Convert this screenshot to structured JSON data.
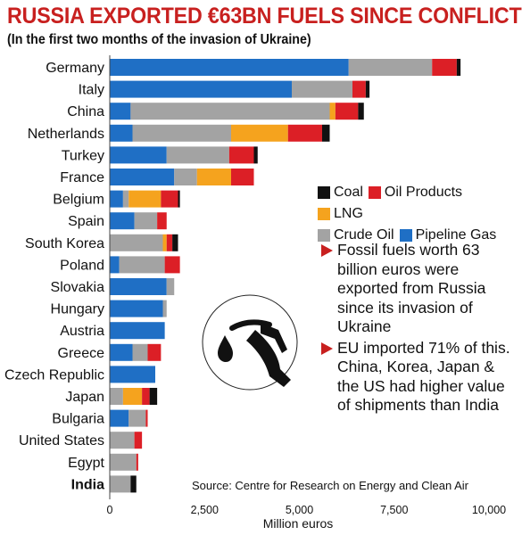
{
  "title": "RUSSIA EXPORTED €63BN FUELS SINCE CONFLICT",
  "subtitle": "(In the first two months of the invasion of Ukraine)",
  "colors": {
    "title_red": "#c8201f",
    "Pipeline Gas": "#1f6fc5",
    "Crude Oil": "#a3a3a3",
    "LNG": "#f5a31e",
    "Oil Products": "#dc1f26",
    "Coal": "#111111"
  },
  "legend": {
    "row1": [
      "Coal",
      "Oil Products",
      "LNG"
    ],
    "row2": [
      "Crude Oil",
      "Pipeline Gas"
    ]
  },
  "notes": [
    "Fossil fuels worth 63 billion euros were exported from Russia since its invasion of Ukraine",
    "EU imported 71% of this. China, Korea, Japan & the US had higher value of shipments than India"
  ],
  "source": "Source: Centre for Research on Energy and Clean Air",
  "icon": "fuel-pump-icon",
  "chart_data": {
    "type": "bar",
    "orientation": "horizontal",
    "stacked": true,
    "title": "RUSSIA EXPORTED €63BN FUELS SINCE CONFLICT",
    "subtitle": "(In the first two months of the invasion of Ukraine)",
    "xlabel": "Million euros",
    "ylabel": "",
    "xlim": [
      0,
      10000
    ],
    "xticks": [
      0,
      2500,
      5000,
      7500,
      10000
    ],
    "xtick_labels": [
      "0",
      "2,500",
      "5,000",
      "7,500",
      "10,000"
    ],
    "grid": false,
    "legend_position": "right",
    "highlight_category": "India",
    "categories": [
      "Germany",
      "Italy",
      "China",
      "Netherlands",
      "Turkey",
      "France",
      "Belgium",
      "Spain",
      "South Korea",
      "Poland",
      "Slovakia",
      "Hungary",
      "Austria",
      "Greece",
      "Czech Republic",
      "Japan",
      "Bulgaria",
      "United States",
      "Egypt",
      "India"
    ],
    "series": [
      {
        "name": "Pipeline Gas",
        "values": [
          6300,
          4800,
          550,
          600,
          1500,
          1700,
          350,
          650,
          0,
          250,
          1500,
          1400,
          1450,
          600,
          1200,
          0,
          500,
          0,
          0,
          0
        ]
      },
      {
        "name": "Crude Oil",
        "values": [
          2200,
          1600,
          5250,
          2600,
          1650,
          600,
          150,
          600,
          1400,
          1200,
          200,
          100,
          0,
          400,
          0,
          350,
          450,
          650,
          700,
          550
        ]
      },
      {
        "name": "LNG",
        "values": [
          0,
          0,
          150,
          1500,
          0,
          900,
          850,
          0,
          100,
          0,
          0,
          0,
          0,
          0,
          0,
          500,
          0,
          0,
          0,
          0
        ]
      },
      {
        "name": "Oil Products",
        "values": [
          650,
          350,
          600,
          900,
          650,
          600,
          450,
          250,
          150,
          400,
          0,
          0,
          0,
          350,
          0,
          200,
          50,
          200,
          50,
          0
        ]
      },
      {
        "name": "Coal",
        "values": [
          100,
          100,
          150,
          200,
          100,
          0,
          50,
          0,
          150,
          0,
          0,
          0,
          0,
          0,
          0,
          200,
          0,
          0,
          0,
          150
        ]
      }
    ]
  }
}
